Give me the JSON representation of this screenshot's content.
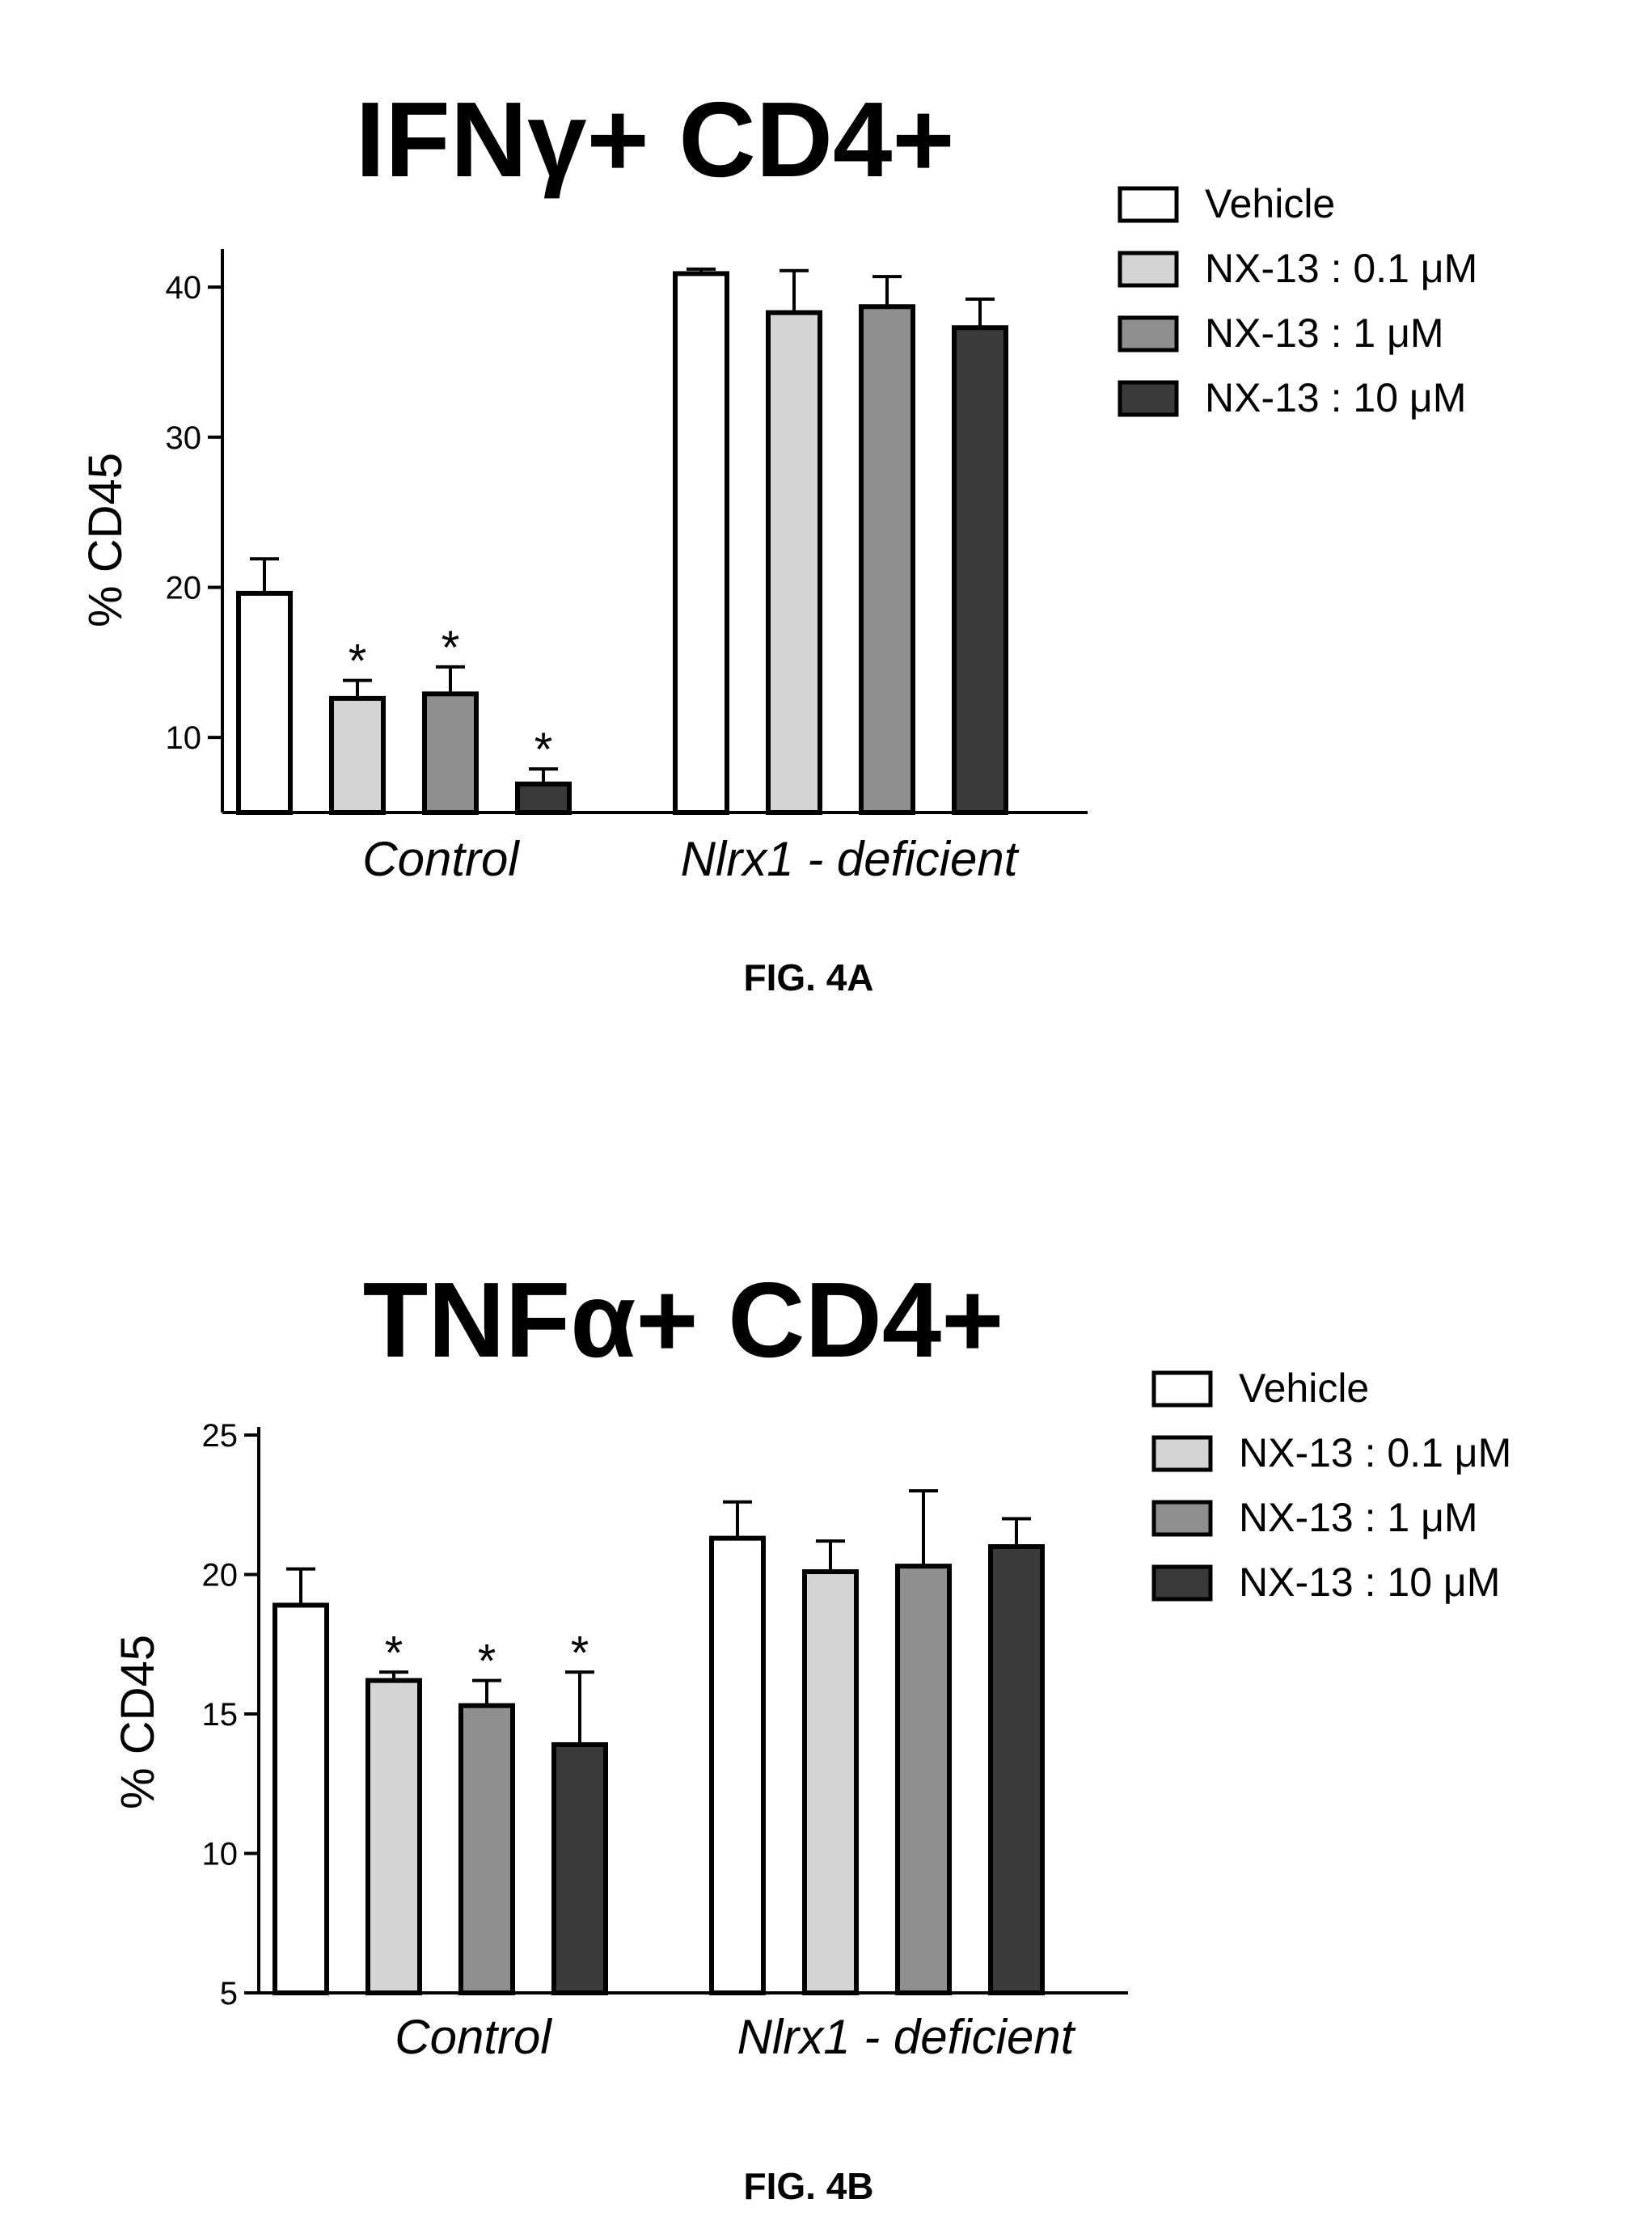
{
  "chart_data": [
    {
      "type": "bar",
      "title": "IFNγ+ CD4+",
      "ylabel": "% CD45",
      "xlabel": "",
      "caption": "FIG. 4A",
      "ylim": [
        5,
        42
      ],
      "yticks": [
        10,
        20,
        30,
        40
      ],
      "categories": [
        "Control",
        "Nlrx1 - deficient"
      ],
      "legend_position": "top-right",
      "series": [
        {
          "name": "Vehicle",
          "color": "#ffffff",
          "values": [
            19.6,
            40.9
          ],
          "errors": [
            2.3,
            0.3
          ],
          "significant": [
            false,
            false
          ]
        },
        {
          "name": "NX-13 : 0.1 μM",
          "color": "#d4d4d4",
          "values": [
            12.6,
            38.3
          ],
          "errors": [
            1.2,
            2.8
          ],
          "significant": [
            true,
            false
          ]
        },
        {
          "name": "NX-13 : 1 μM",
          "color": "#8f8f8f",
          "values": [
            12.9,
            38.7
          ],
          "errors": [
            1.8,
            2.0
          ],
          "significant": [
            true,
            false
          ]
        },
        {
          "name": "NX-13 : 10 μM",
          "color": "#3a3a3a",
          "values": [
            6.9,
            37.3
          ],
          "errors": [
            1.0,
            1.9
          ],
          "significant": [
            true,
            false
          ]
        }
      ],
      "annotation_symbol": "*"
    },
    {
      "type": "bar",
      "title": "TNFα+ CD4+",
      "ylabel": "% CD45",
      "xlabel": "",
      "caption": "FIG. 4B",
      "ylim": [
        5,
        25
      ],
      "yticks": [
        5,
        10,
        15,
        20,
        25
      ],
      "categories": [
        "Control",
        "Nlrx1 - deficient"
      ],
      "legend_position": "top-right",
      "series": [
        {
          "name": "Vehicle",
          "color": "#ffffff",
          "values": [
            18.9,
            21.3
          ],
          "errors": [
            1.3,
            1.3
          ],
          "significant": [
            false,
            false
          ]
        },
        {
          "name": "NX-13 : 0.1 μM",
          "color": "#d4d4d4",
          "values": [
            16.2,
            20.1
          ],
          "errors": [
            0.3,
            1.1
          ],
          "significant": [
            true,
            false
          ]
        },
        {
          "name": "NX-13 : 1 μM",
          "color": "#8f8f8f",
          "values": [
            15.3,
            20.3
          ],
          "errors": [
            0.9,
            2.7
          ],
          "significant": [
            true,
            false
          ]
        },
        {
          "name": "NX-13 : 10 μM",
          "color": "#3a3a3a",
          "values": [
            13.9,
            21.0
          ],
          "errors": [
            2.6,
            1.0
          ],
          "significant": [
            true,
            false
          ]
        }
      ],
      "annotation_symbol": "*"
    }
  ]
}
